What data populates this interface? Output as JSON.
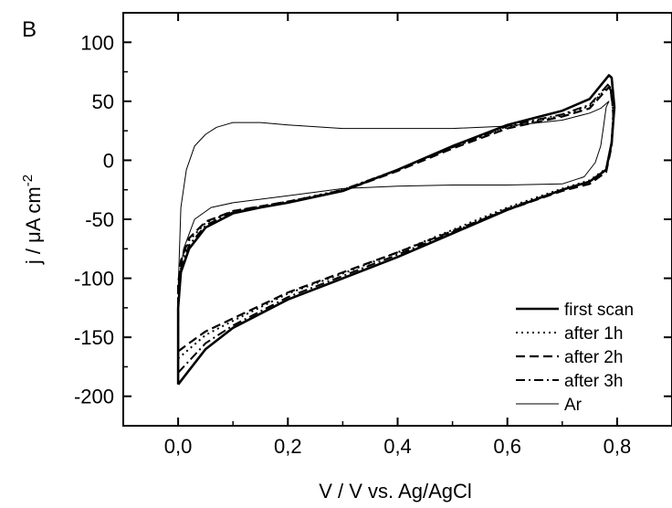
{
  "panel_label": "B",
  "chart_data": {
    "type": "line",
    "title": "",
    "xlabel": "V / V vs. Ag/AgCl",
    "ylabel_main": "j / μA cm",
    "ylabel_sup": "-2",
    "xlim": [
      -0.1,
      0.9
    ],
    "ylim": [
      -225,
      125
    ],
    "grid": false,
    "legend_position": "bottom-right",
    "x_ticks": [
      0.0,
      0.2,
      0.4,
      0.6,
      0.8
    ],
    "x_tick_labels": [
      "0,0",
      "0,2",
      "0,4",
      "0,6",
      "0,8"
    ],
    "y_ticks": [
      100,
      50,
      0,
      -50,
      -100,
      -150,
      -200
    ],
    "y_tick_labels": [
      "100",
      "50",
      "0",
      "-50",
      "-100",
      "-150",
      "-200"
    ],
    "series": [
      {
        "name": "first scan",
        "style": "solid-thick",
        "points": [
          [
            0.0,
            -190
          ],
          [
            0.02,
            -178
          ],
          [
            0.05,
            -160
          ],
          [
            0.1,
            -142
          ],
          [
            0.2,
            -118
          ],
          [
            0.3,
            -100
          ],
          [
            0.4,
            -82
          ],
          [
            0.5,
            -62
          ],
          [
            0.6,
            -42
          ],
          [
            0.7,
            -25
          ],
          [
            0.75,
            -18
          ],
          [
            0.78,
            -8
          ],
          [
            0.79,
            15
          ],
          [
            0.795,
            45
          ],
          [
            0.79,
            70
          ],
          [
            0.785,
            72
          ],
          [
            0.75,
            52
          ],
          [
            0.7,
            42
          ],
          [
            0.6,
            30
          ],
          [
            0.5,
            12
          ],
          [
            0.4,
            -8
          ],
          [
            0.3,
            -26
          ],
          [
            0.2,
            -36
          ],
          [
            0.15,
            -40
          ],
          [
            0.1,
            -45
          ],
          [
            0.05,
            -57
          ],
          [
            0.02,
            -75
          ],
          [
            0.005,
            -95
          ],
          [
            0.0,
            -125
          ],
          [
            0.0,
            -190
          ]
        ]
      },
      {
        "name": "after 1h",
        "style": "dotted",
        "points": [
          [
            0.0,
            -168
          ],
          [
            0.02,
            -160
          ],
          [
            0.05,
            -148
          ],
          [
            0.1,
            -136
          ],
          [
            0.2,
            -113
          ],
          [
            0.3,
            -96
          ],
          [
            0.4,
            -78
          ],
          [
            0.5,
            -59
          ],
          [
            0.6,
            -40
          ],
          [
            0.7,
            -24
          ],
          [
            0.75,
            -17
          ],
          [
            0.78,
            -7
          ],
          [
            0.79,
            15
          ],
          [
            0.793,
            42
          ],
          [
            0.788,
            60
          ],
          [
            0.785,
            63
          ],
          [
            0.75,
            46
          ],
          [
            0.7,
            38
          ],
          [
            0.6,
            28
          ],
          [
            0.5,
            11
          ],
          [
            0.4,
            -8
          ],
          [
            0.3,
            -25
          ],
          [
            0.2,
            -35
          ],
          [
            0.15,
            -39
          ],
          [
            0.1,
            -43
          ],
          [
            0.05,
            -53
          ],
          [
            0.02,
            -68
          ],
          [
            0.005,
            -88
          ],
          [
            0.0,
            -110
          ],
          [
            0.0,
            -168
          ]
        ]
      },
      {
        "name": "after 2h",
        "style": "dashed",
        "points": [
          [
            0.0,
            -162
          ],
          [
            0.02,
            -155
          ],
          [
            0.05,
            -145
          ],
          [
            0.1,
            -134
          ],
          [
            0.2,
            -112
          ],
          [
            0.3,
            -95
          ],
          [
            0.4,
            -78
          ],
          [
            0.5,
            -60
          ],
          [
            0.6,
            -42
          ],
          [
            0.7,
            -26
          ],
          [
            0.75,
            -20
          ],
          [
            0.78,
            -10
          ],
          [
            0.79,
            12
          ],
          [
            0.793,
            38
          ],
          [
            0.79,
            58
          ],
          [
            0.785,
            62
          ],
          [
            0.75,
            44
          ],
          [
            0.7,
            37
          ],
          [
            0.6,
            27
          ],
          [
            0.5,
            10
          ],
          [
            0.4,
            -9
          ],
          [
            0.3,
            -26
          ],
          [
            0.2,
            -35
          ],
          [
            0.15,
            -39
          ],
          [
            0.1,
            -43
          ],
          [
            0.05,
            -52
          ],
          [
            0.02,
            -66
          ],
          [
            0.005,
            -85
          ],
          [
            0.0,
            -105
          ],
          [
            0.0,
            -162
          ]
        ]
      },
      {
        "name": "after 3h",
        "style": "dash-dot",
        "points": [
          [
            0.0,
            -180
          ],
          [
            0.02,
            -170
          ],
          [
            0.05,
            -155
          ],
          [
            0.1,
            -140
          ],
          [
            0.2,
            -116
          ],
          [
            0.3,
            -98
          ],
          [
            0.4,
            -80
          ],
          [
            0.5,
            -61
          ],
          [
            0.6,
            -41
          ],
          [
            0.7,
            -25
          ],
          [
            0.75,
            -18
          ],
          [
            0.78,
            -8
          ],
          [
            0.79,
            14
          ],
          [
            0.793,
            40
          ],
          [
            0.788,
            60
          ],
          [
            0.785,
            65
          ],
          [
            0.75,
            47
          ],
          [
            0.7,
            39
          ],
          [
            0.6,
            29
          ],
          [
            0.5,
            11
          ],
          [
            0.4,
            -8
          ],
          [
            0.3,
            -25
          ],
          [
            0.2,
            -36
          ],
          [
            0.15,
            -40
          ],
          [
            0.1,
            -44
          ],
          [
            0.05,
            -55
          ],
          [
            0.02,
            -72
          ],
          [
            0.005,
            -92
          ],
          [
            0.0,
            -115
          ],
          [
            0.0,
            -180
          ]
        ]
      },
      {
        "name": "Ar",
        "style": "solid-thin",
        "points": [
          [
            0.0,
            -110
          ],
          [
            0.01,
            -75
          ],
          [
            0.03,
            -50
          ],
          [
            0.06,
            -40
          ],
          [
            0.1,
            -36
          ],
          [
            0.2,
            -30
          ],
          [
            0.3,
            -24
          ],
          [
            0.4,
            -22
          ],
          [
            0.5,
            -21
          ],
          [
            0.6,
            -21
          ],
          [
            0.7,
            -20
          ],
          [
            0.74,
            -14
          ],
          [
            0.76,
            -2
          ],
          [
            0.77,
            12
          ],
          [
            0.775,
            28
          ],
          [
            0.78,
            45
          ],
          [
            0.785,
            50
          ],
          [
            0.77,
            44
          ],
          [
            0.75,
            40
          ],
          [
            0.7,
            34
          ],
          [
            0.6,
            29
          ],
          [
            0.5,
            27
          ],
          [
            0.4,
            27
          ],
          [
            0.3,
            27
          ],
          [
            0.2,
            30
          ],
          [
            0.15,
            32
          ],
          [
            0.1,
            32
          ],
          [
            0.07,
            28
          ],
          [
            0.05,
            22
          ],
          [
            0.03,
            12
          ],
          [
            0.015,
            -8
          ],
          [
            0.005,
            -40
          ],
          [
            0.0,
            -110
          ]
        ]
      }
    ]
  }
}
